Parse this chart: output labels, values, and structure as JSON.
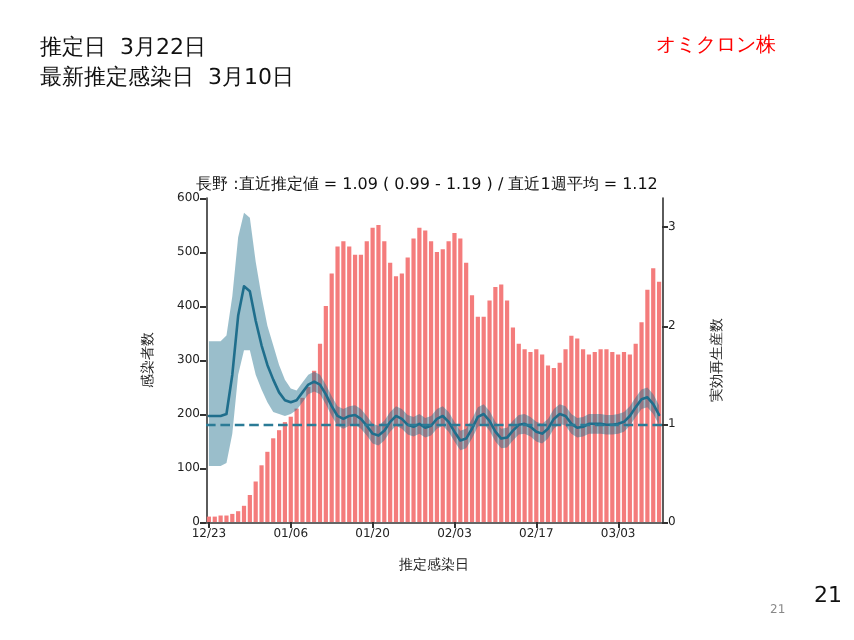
{
  "chart_data": {
    "type": "bar",
    "title": "長野 :直近推定値 = 1.09 ( 0.99 - 1.19 ) / 直近1週平均 = 1.12",
    "xlabel": "推定感染日",
    "ylabel": "感染者数",
    "y2label": "実効再生産数",
    "annotations": [
      "推定日  3月22日",
      "最新推定感染日  3月10日",
      "オミクロン株",
      "21",
      "21"
    ],
    "categories": [
      "12/23",
      null,
      null,
      null,
      null,
      null,
      null,
      null,
      null,
      null,
      null,
      null,
      null,
      null,
      "01/06",
      null,
      null,
      null,
      null,
      null,
      null,
      null,
      null,
      null,
      null,
      null,
      null,
      null,
      "01/20",
      null,
      null,
      null,
      null,
      null,
      null,
      null,
      null,
      null,
      null,
      null,
      null,
      null,
      "02/03",
      null,
      null,
      null,
      null,
      null,
      null,
      null,
      null,
      null,
      null,
      null,
      null,
      null,
      "02/17",
      null,
      null,
      null,
      null,
      null,
      null,
      null,
      null,
      null,
      null,
      null,
      null,
      null,
      "03/03",
      null,
      null,
      null,
      null,
      null,
      null,
      null
    ],
    "series": [
      {
        "color": "#f47c7c",
        "values": [
          10,
          10,
          12,
          12,
          15,
          20,
          30,
          50,
          75,
          105,
          130,
          155,
          170,
          185,
          195,
          210,
          230,
          250,
          280,
          330,
          400,
          460,
          510,
          520,
          510,
          495,
          495,
          520,
          545,
          550,
          520,
          480,
          455,
          460,
          490,
          525,
          545,
          540,
          520,
          500,
          505,
          520,
          535,
          525,
          480,
          420,
          380,
          380,
          410,
          435,
          440,
          410,
          360,
          330,
          320,
          315,
          320,
          310,
          290,
          285,
          295,
          320,
          345,
          340,
          320,
          310,
          315,
          320,
          320,
          315,
          310,
          315,
          310,
          330,
          370,
          430,
          470,
          445
        ]
      },
      {
        "type": "line",
        "axis": "y2",
        "color": "#1f6e8c",
        "values": [
          1.08,
          1.08,
          1.08,
          1.1,
          1.5,
          2.1,
          2.4,
          2.35,
          2.05,
          1.8,
          1.6,
          1.45,
          1.32,
          1.24,
          1.22,
          1.24,
          1.32,
          1.4,
          1.43,
          1.4,
          1.3,
          1.18,
          1.08,
          1.05,
          1.08,
          1.09,
          1.05,
          0.98,
          0.9,
          0.88,
          0.93,
          1.02,
          1.08,
          1.05,
          0.99,
          0.97,
          1.0,
          0.96,
          0.98,
          1.05,
          1.08,
          1.02,
          0.92,
          0.83,
          0.85,
          0.95,
          1.07,
          1.1,
          1.03,
          0.92,
          0.85,
          0.86,
          0.93,
          0.99,
          1.0,
          0.97,
          0.92,
          0.9,
          0.95,
          1.05,
          1.1,
          1.08,
          1.0,
          0.96,
          0.97,
          1.0,
          1.0,
          1.0,
          0.99,
          0.99,
          1.0,
          1.02,
          1.08,
          1.17,
          1.25,
          1.27,
          1.2,
          1.09
        ],
        "lower": [
          0.57,
          0.57,
          0.57,
          0.6,
          0.9,
          1.5,
          1.75,
          1.75,
          1.5,
          1.35,
          1.22,
          1.12,
          1.1,
          1.08,
          1.1,
          1.14,
          1.22,
          1.3,
          1.33,
          1.3,
          1.2,
          1.08,
          0.98,
          0.95,
          0.98,
          0.99,
          0.95,
          0.88,
          0.8,
          0.78,
          0.83,
          0.92,
          0.98,
          0.95,
          0.89,
          0.87,
          0.9,
          0.86,
          0.88,
          0.95,
          0.98,
          0.92,
          0.82,
          0.73,
          0.75,
          0.85,
          0.97,
          1.0,
          0.93,
          0.82,
          0.75,
          0.76,
          0.83,
          0.89,
          0.9,
          0.87,
          0.82,
          0.8,
          0.85,
          0.95,
          1.0,
          0.98,
          0.9,
          0.86,
          0.87,
          0.9,
          0.9,
          0.9,
          0.89,
          0.89,
          0.9,
          0.92,
          0.98,
          1.07,
          1.15,
          1.17,
          1.1,
          0.99
        ],
        "upper": [
          1.84,
          1.84,
          1.84,
          1.9,
          2.3,
          2.9,
          3.15,
          3.1,
          2.65,
          2.3,
          2.0,
          1.8,
          1.6,
          1.45,
          1.36,
          1.34,
          1.42,
          1.5,
          1.53,
          1.5,
          1.4,
          1.28,
          1.18,
          1.15,
          1.18,
          1.19,
          1.15,
          1.08,
          1.0,
          0.98,
          1.03,
          1.12,
          1.18,
          1.15,
          1.09,
          1.07,
          1.1,
          1.06,
          1.08,
          1.15,
          1.18,
          1.12,
          1.02,
          0.93,
          0.95,
          1.05,
          1.17,
          1.2,
          1.13,
          1.02,
          0.95,
          0.96,
          1.03,
          1.09,
          1.1,
          1.07,
          1.02,
          1.0,
          1.05,
          1.15,
          1.2,
          1.18,
          1.1,
          1.06,
          1.07,
          1.1,
          1.1,
          1.1,
          1.09,
          1.09,
          1.1,
          1.12,
          1.18,
          1.27,
          1.35,
          1.37,
          1.3,
          1.19
        ]
      }
    ],
    "ylim": [
      0,
      600
    ],
    "yticks": [
      0,
      100,
      200,
      300,
      400,
      500,
      600
    ],
    "y2lim": [
      0,
      3.3
    ],
    "y2ticks": [
      0,
      1,
      2,
      3
    ],
    "ref_lines": [
      {
        "axis": "y2",
        "value": 1,
        "color": "#2b7b96",
        "line_style": "dashed"
      }
    ]
  }
}
